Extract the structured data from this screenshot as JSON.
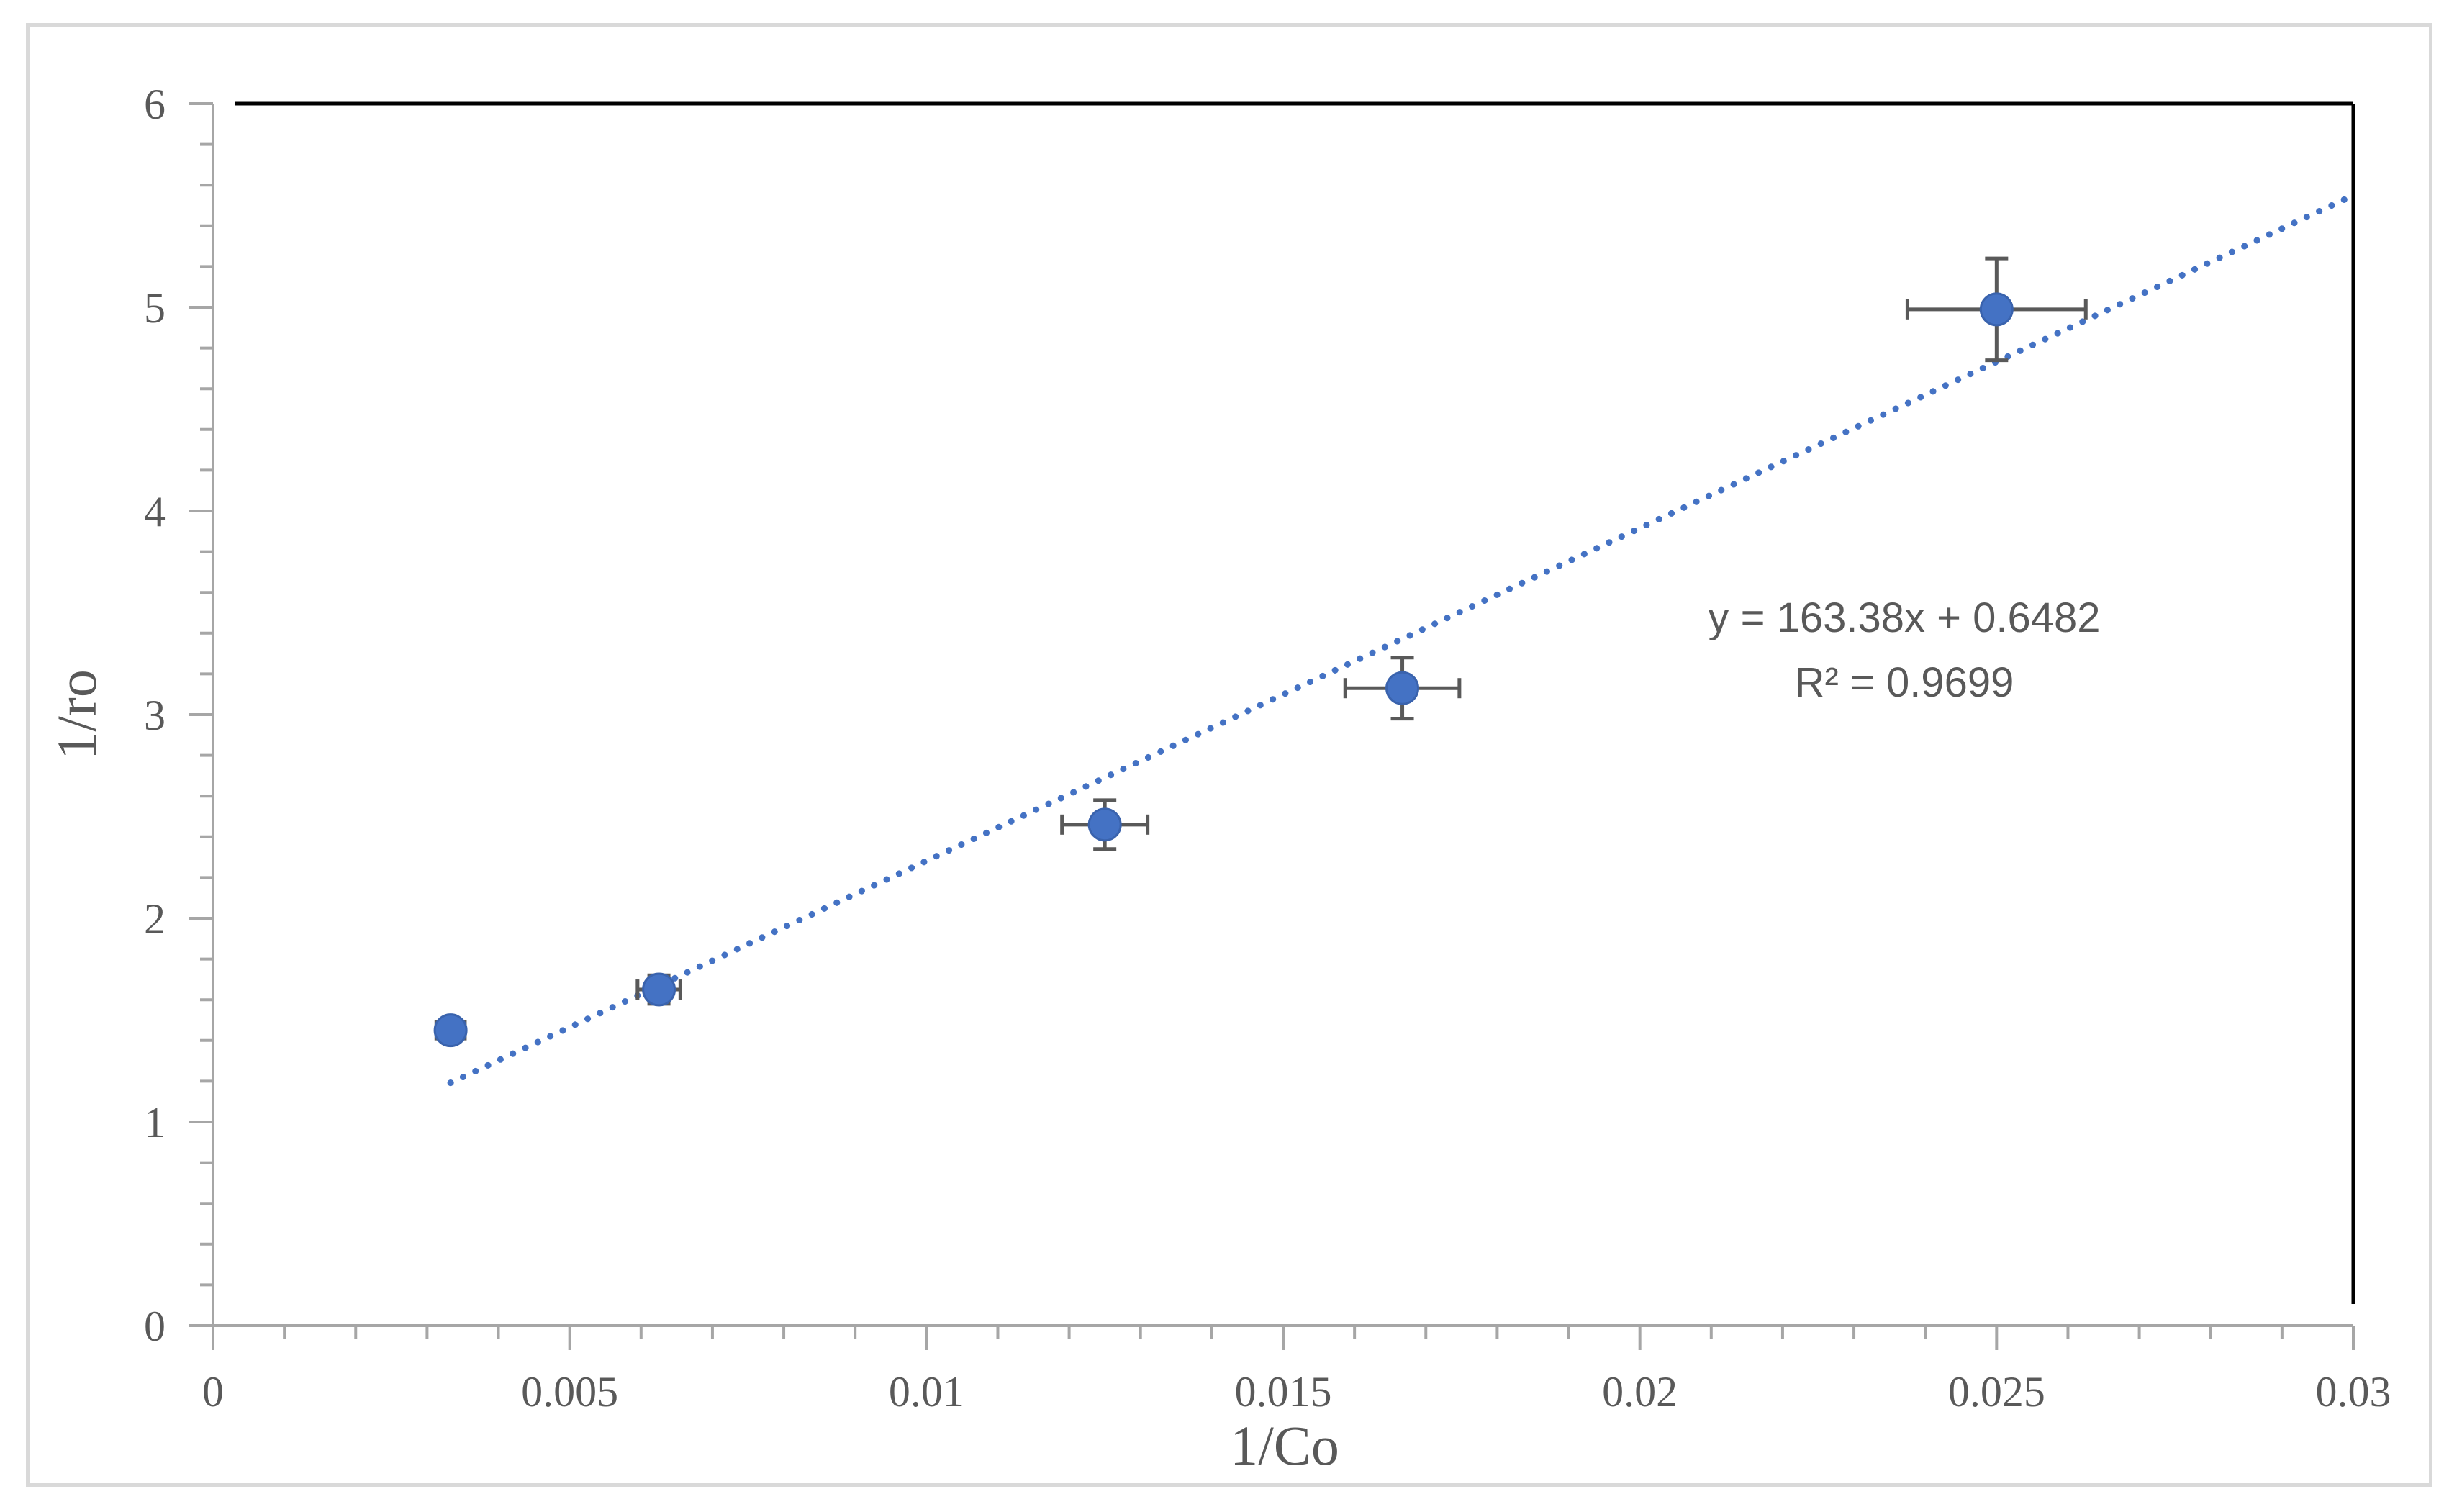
{
  "chart_data": {
    "type": "scatter",
    "xlabel": "1/Co",
    "ylabel": "1/ro",
    "xlim": [
      0,
      0.03
    ],
    "ylim": [
      0,
      6
    ],
    "x_ticks": [
      "0",
      "0.005",
      "0.01",
      "0.015",
      "0.02",
      "0.025",
      "0.03"
    ],
    "x_tick_values": [
      0,
      0.005,
      0.01,
      0.015,
      0.02,
      0.025,
      0.03
    ],
    "y_ticks": [
      "0",
      "1",
      "2",
      "3",
      "4",
      "5",
      "6"
    ],
    "y_tick_values": [
      0,
      1,
      2,
      3,
      4,
      5,
      6
    ],
    "x_minor_step": 0.001,
    "y_minor_step": 0.2,
    "grid": false,
    "legend": "none",
    "series": [
      {
        "color": "#4472c4",
        "x": [
          0.00333,
          0.00625,
          0.0125,
          0.01667,
          0.025
        ],
        "y": [
          1.45,
          1.65,
          2.46,
          3.13,
          4.99
        ],
        "x_err": [
          0.0002,
          0.0003,
          0.0006,
          0.0008,
          0.00125
        ],
        "y_err": [
          0.05,
          0.07,
          0.12,
          0.15,
          0.25
        ]
      }
    ],
    "trendline": {
      "type": "linear",
      "style": "dotted",
      "color": "#4472c4",
      "slope": 163.38,
      "intercept": 0.6482,
      "x_range": [
        0.00333,
        0.03
      ],
      "equation_label": "y = 163.38x + 0.6482",
      "r2_label": "R² = 0.9699"
    },
    "colors": {
      "marker": "#4472c4",
      "error_bar": "#595959",
      "axis": "#a6a6a6",
      "text": "#595959"
    }
  }
}
